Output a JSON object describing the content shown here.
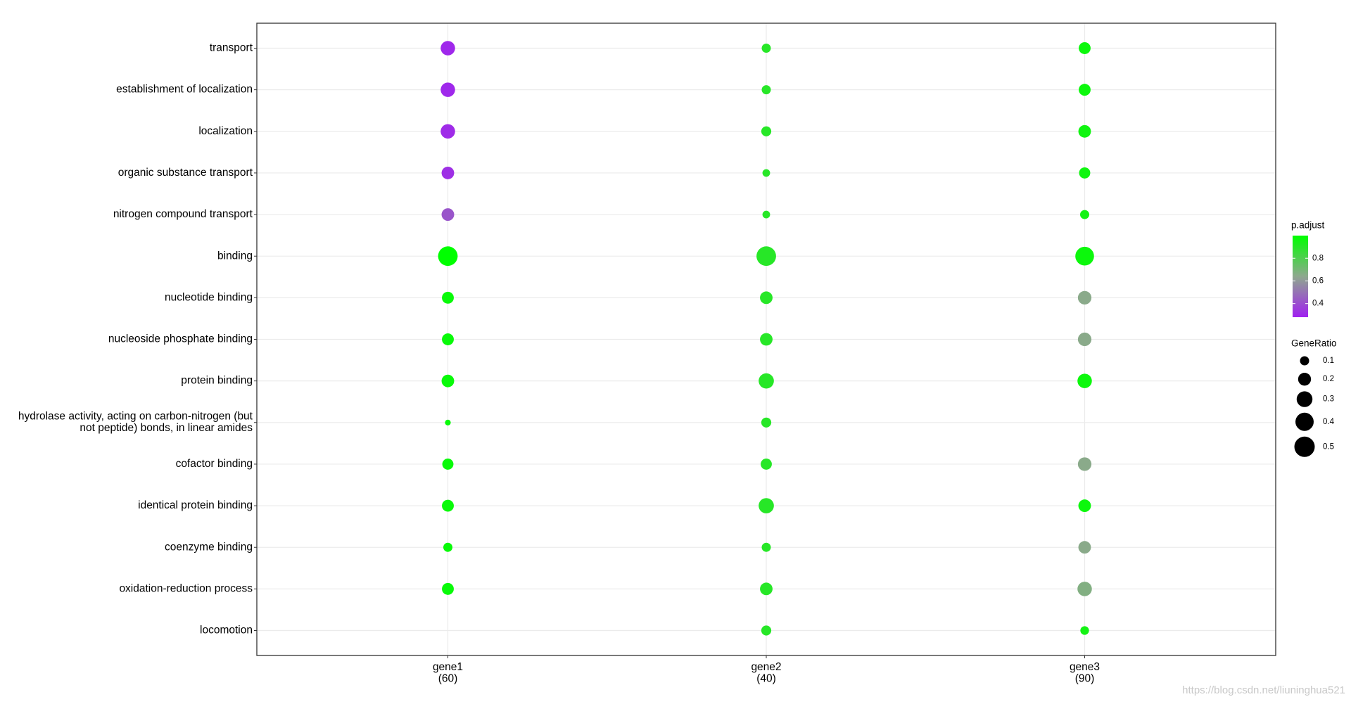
{
  "chart_data": {
    "type": "dot",
    "x_categories": [
      "gene1\n(60)",
      "gene2\n(40)",
      "gene3\n(90)"
    ],
    "y_categories": [
      "transport",
      "establishment of localization",
      "localization",
      "organic substance transport",
      "nitrogen compound transport",
      "binding",
      "nucleotide binding",
      "nucleoside phosphate binding",
      "protein binding",
      "hydrolase activity, acting on carbon-nitrogen (but\nnot peptide) bonds, in linear amides",
      "cofactor binding",
      "identical protein binding",
      "coenzyme binding",
      "oxidation-reduction process",
      "locomotion"
    ],
    "gene_ratio": [
      [
        0.25,
        0.1,
        0.17
      ],
      [
        0.25,
        0.1,
        0.17
      ],
      [
        0.25,
        0.12,
        0.19
      ],
      [
        0.19,
        0.07,
        0.15
      ],
      [
        0.19,
        0.07,
        0.1
      ],
      [
        0.46,
        0.46,
        0.42
      ],
      [
        0.17,
        0.19,
        0.22
      ],
      [
        0.17,
        0.19,
        0.22
      ],
      [
        0.19,
        0.28,
        0.25
      ],
      [
        0.04,
        0.12,
        null
      ],
      [
        0.15,
        0.15,
        0.22
      ],
      [
        0.17,
        0.28,
        0.19
      ],
      [
        0.1,
        0.1,
        0.19
      ],
      [
        0.17,
        0.19,
        0.25
      ],
      [
        null,
        0.12,
        0.09
      ]
    ],
    "p_adjust": [
      [
        0.3,
        0.9,
        0.97
      ],
      [
        0.3,
        0.9,
        0.97
      ],
      [
        0.31,
        0.9,
        0.96
      ],
      [
        0.32,
        0.9,
        0.96
      ],
      [
        0.42,
        0.9,
        0.95
      ],
      [
        1.0,
        0.9,
        0.97
      ],
      [
        0.98,
        0.9,
        0.65
      ],
      [
        0.98,
        0.9,
        0.65
      ],
      [
        0.98,
        0.9,
        0.97
      ],
      [
        0.98,
        0.9,
        null
      ],
      [
        0.98,
        0.9,
        0.65
      ],
      [
        0.98,
        0.9,
        0.97
      ],
      [
        0.98,
        0.9,
        0.65
      ],
      [
        0.98,
        0.9,
        0.67
      ],
      [
        null,
        0.9,
        0.95
      ]
    ],
    "color_legend": {
      "title": "p.adjust",
      "lim": [
        0.28,
        1.0
      ],
      "ticks": [
        0.4,
        0.6,
        0.8
      ],
      "colors": [
        "#a020f0",
        "#8ea88e",
        "#00ff00"
      ]
    },
    "size_legend": {
      "title": "GeneRatio",
      "ticks": [
        0.1,
        0.2,
        0.3,
        0.4,
        0.5
      ]
    },
    "grid": true,
    "watermark": "https://blog.csdn.net/liuninghua521"
  }
}
